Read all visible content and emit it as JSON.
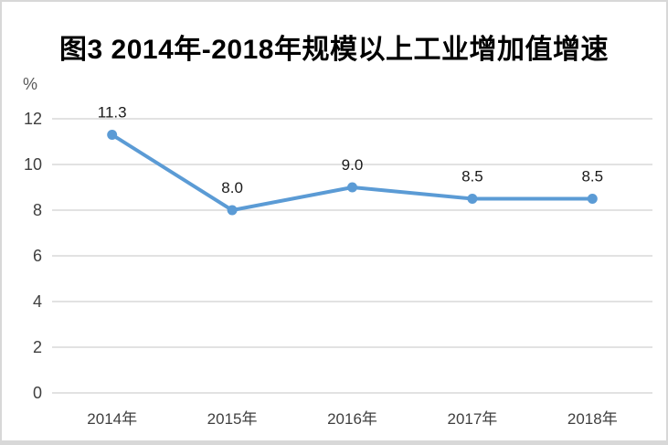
{
  "title": "图3 2014年-2018年规模以上工业增加值增速",
  "y_axis_unit": "%",
  "colors": {
    "line": "#5B9BD5",
    "marker": "#5B9BD5",
    "gridline": "#D9D9D9",
    "axis_label": "#3F3F3F",
    "data_label": "#1A1A1A",
    "unit_label": "#595959",
    "border": "#D8D8D8",
    "background": "#FFFFFF"
  },
  "chart_data": {
    "type": "line",
    "title": "图3 2014年-2018年规模以上工业增加值增速",
    "categories": [
      "2014年",
      "2015年",
      "2016年",
      "2017年",
      "2018年"
    ],
    "values": [
      11.3,
      8.0,
      9.0,
      8.5,
      8.5
    ],
    "data_labels": [
      "11.3",
      "8.0",
      "9.0",
      "8.5",
      "8.5"
    ],
    "xlabel": "",
    "ylabel": "%",
    "ylim": [
      0,
      12
    ],
    "yticks": [
      0,
      2,
      4,
      6,
      8,
      10,
      12
    ],
    "grid": true,
    "legend": false,
    "marker": "circle"
  }
}
